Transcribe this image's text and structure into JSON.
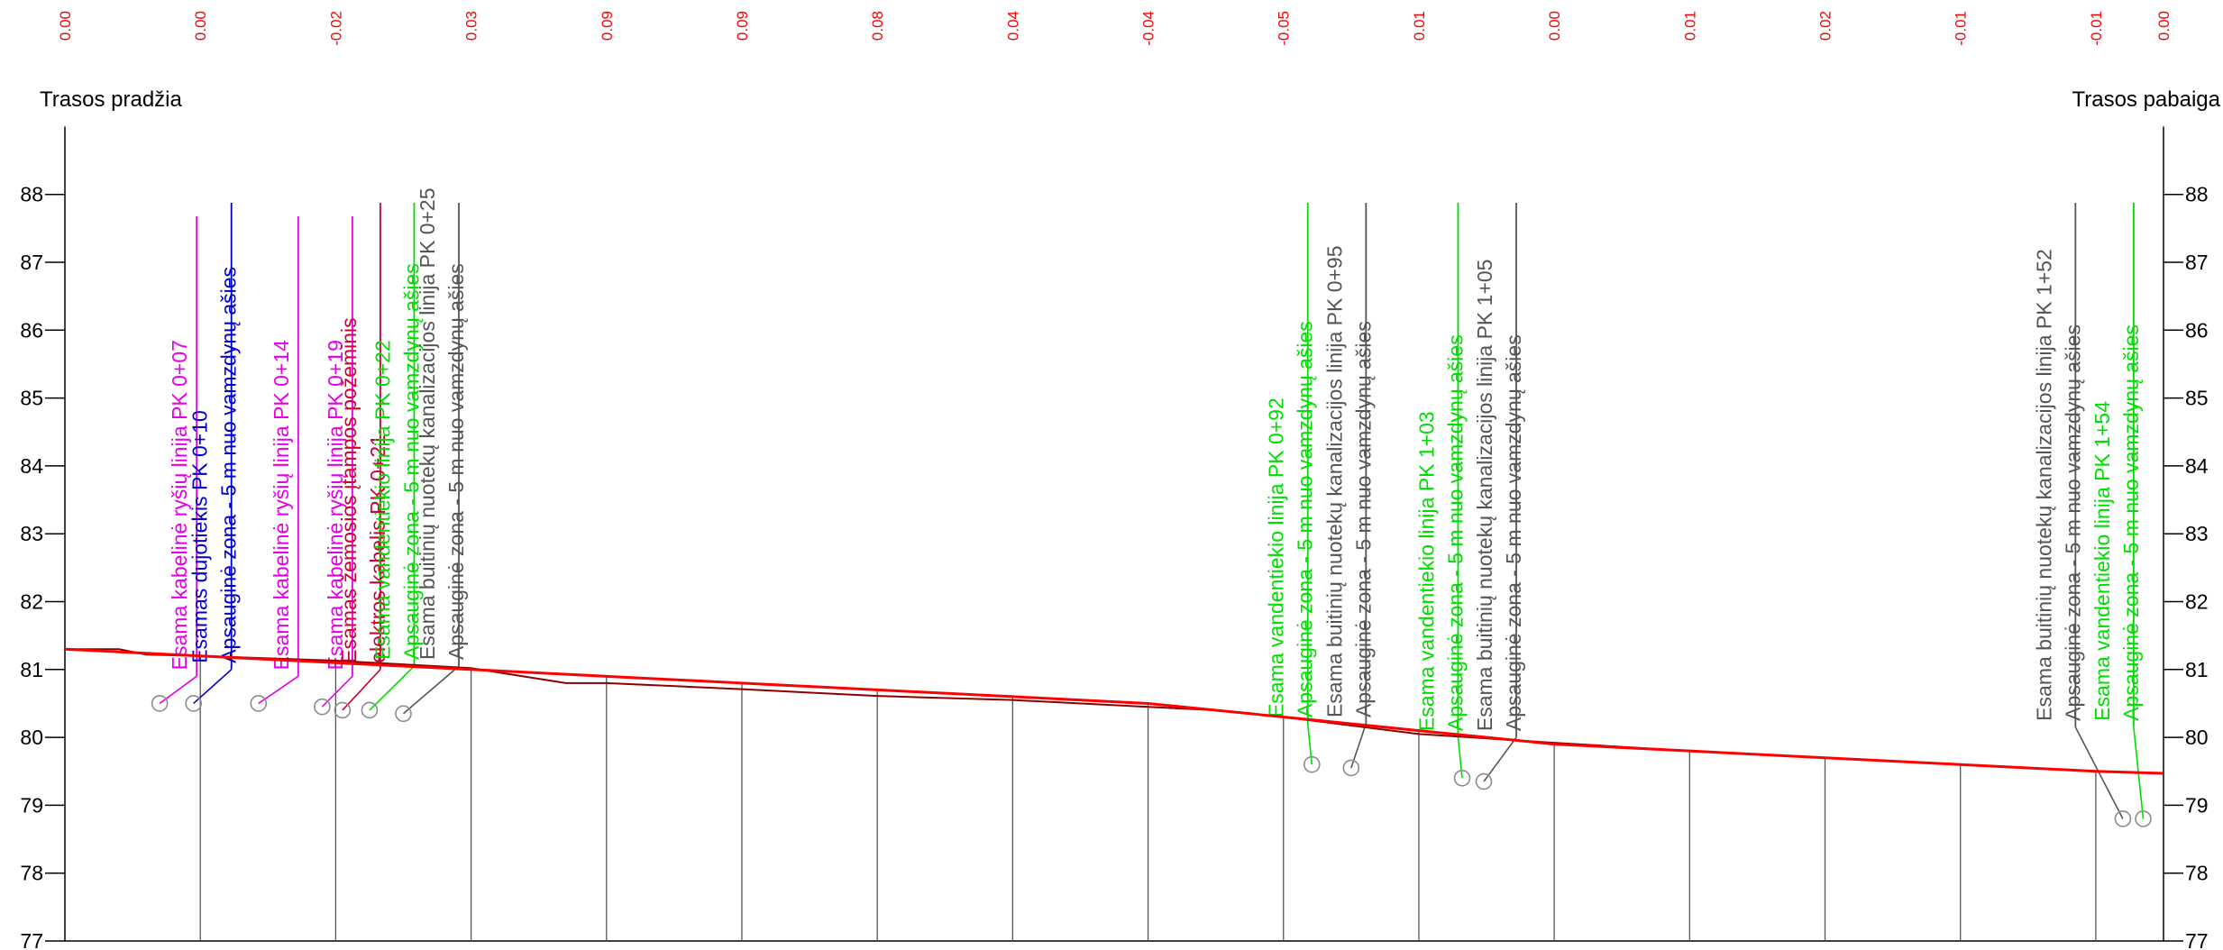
{
  "header": {
    "start_label": "Trasos pradžia",
    "end_label": "Trasos pabaiga"
  },
  "colors": {
    "terrain_design": "#ff0000",
    "terrain_existing": "#8b0000",
    "grid": "#000000",
    "vertical_lines": "#555555",
    "difference_text": "#ff0000",
    "magenta": "#e600e6",
    "blue": "#0000cc",
    "crimson": "#cc0033",
    "green": "#00dd00",
    "gray": "#555555"
  },
  "chart_data": {
    "type": "line",
    "ylim": [
      77,
      89
    ],
    "yticks": [
      77,
      78,
      79,
      80,
      81,
      82,
      83,
      84,
      85,
      86,
      87,
      88
    ],
    "x_range": [
      0,
      155
    ],
    "stations": [
      0,
      10,
      20,
      30,
      40,
      50,
      60,
      70,
      80,
      90,
      100,
      110,
      120,
      130,
      140,
      150,
      155
    ],
    "differences": [
      "0.00",
      "0.00",
      "-0.02",
      "0.03",
      "0.09",
      "0.09",
      "0.08",
      "0.04",
      "-0.04",
      "-0.05",
      "0.01",
      "0.00",
      "0.01",
      "0.02",
      "-0.01",
      "-0.01",
      "0.00"
    ],
    "series": [
      {
        "x": [
          0,
          4,
          6,
          10,
          20,
          30,
          37,
          40,
          50,
          60,
          70,
          80,
          85,
          90,
          100,
          110,
          120,
          130,
          140,
          150,
          155
        ],
        "y": [
          81.3,
          81.3,
          81.22,
          81.2,
          81.13,
          81.02,
          80.8,
          80.8,
          80.71,
          80.61,
          80.55,
          80.45,
          80.4,
          80.3,
          80.05,
          79.92,
          79.8,
          79.7,
          79.6,
          79.5,
          79.47
        ]
      },
      {
        "x": [
          0,
          10,
          20,
          30,
          40,
          50,
          60,
          70,
          80,
          90,
          100,
          110,
          120,
          130,
          140,
          150,
          155
        ],
        "y": [
          81.3,
          81.2,
          81.1,
          81.0,
          80.9,
          80.8,
          80.7,
          80.6,
          80.5,
          80.3,
          80.1,
          79.9,
          79.8,
          79.7,
          79.6,
          79.5,
          79.47
        ]
      }
    ],
    "utilities": [
      {
        "lines": [
          "Esama kabelinė ryšių linija PK 0+07"
        ],
        "color": "magenta",
        "station": 7,
        "elev": 80.5,
        "base": 80.9,
        "anchor": 9
      },
      {
        "lines": [
          "Esamas dujotiekis PK 0+10",
          "Apsauginė zona - 5 m nuo vamzdynų ašies"
        ],
        "color": "blue",
        "station": 9.5,
        "elev": 80.5,
        "base": 81.0,
        "anchor": 10.5
      },
      {
        "lines": [
          "Esama kabelinė ryšių linija PK 0+14"
        ],
        "color": "magenta",
        "station": 14.3,
        "elev": 80.5,
        "base": 80.9,
        "anchor": 16.5
      },
      {
        "lines": [
          "Esama kabelinė ryšių linija PK 0+19"
        ],
        "color": "magenta",
        "station": 19,
        "elev": 80.45,
        "base": 80.9,
        "anchor": 20.5
      },
      {
        "lines": [
          "Esamas žemosios įtampos požeminis",
          "elektros kabelis PK 0+21"
        ],
        "color": "crimson",
        "station": 20.5,
        "elev": 80.4,
        "base": 81.0,
        "anchor": 21.5
      },
      {
        "lines": [
          "Esama vandentiekio linija PK 0+22",
          "Apsauginė zona - 5 m nuo vamzdynų ašies"
        ],
        "color": "green",
        "station": 22.5,
        "elev": 80.4,
        "base": 81.05,
        "anchor": 24.0
      },
      {
        "lines": [
          "Esama buitinių nuotekų kanalizacijos linija PK 0+25",
          "Apsauginė zona - 5 m nuo vamzdynų ašies"
        ],
        "color": "gray",
        "station": 25,
        "elev": 80.35,
        "base": 81.05,
        "anchor": 27.3
      },
      {
        "lines": [
          "Esama vandentiekio linija PK 0+92",
          "Apsauginė zona - 5 m nuo vamzdynų ašies"
        ],
        "color": "green",
        "station": 92.1,
        "elev": 79.6,
        "base": 80.2,
        "anchor": 90.0
      },
      {
        "lines": [
          "Esama buitinių nuotekų kanalizacijos linija PK 0+95",
          "Apsauginė zona - 5 m nuo vamzdynų ašies"
        ],
        "color": "gray",
        "station": 95,
        "elev": 79.55,
        "base": 80.2,
        "anchor": 94.3
      },
      {
        "lines": [
          "Esama vandentiekio linija PK 1+03",
          "Apsauginė zona - 5 m nuo vamzdynų ašies"
        ],
        "color": "green",
        "station": 103.2,
        "elev": 79.4,
        "base": 80.0,
        "anchor": 101.1
      },
      {
        "lines": [
          "Esama buitinių nuotekų kanalizacijos linija PK 1+05",
          "Apsauginė zona - 5 m nuo vamzdynų ašies"
        ],
        "color": "gray",
        "station": 104.8,
        "elev": 79.35,
        "base": 80.0,
        "anchor": 105.4
      },
      {
        "lines": [
          "Esama buitinių nuotekų kanalizacijos linija PK 1+52",
          "Apsauginė zona - 5 m nuo vamzdynų ašies"
        ],
        "color": "gray",
        "station": 152,
        "elev": 78.8,
        "base": 80.15,
        "anchor": 146.7
      },
      {
        "lines": [
          "Esama vandentiekio linija PK 1+54",
          "Apsauginė zona - 5 m nuo vamzdynų ašies"
        ],
        "color": "green",
        "station": 153.5,
        "elev": 78.8,
        "base": 80.15,
        "anchor": 151.0
      }
    ]
  }
}
